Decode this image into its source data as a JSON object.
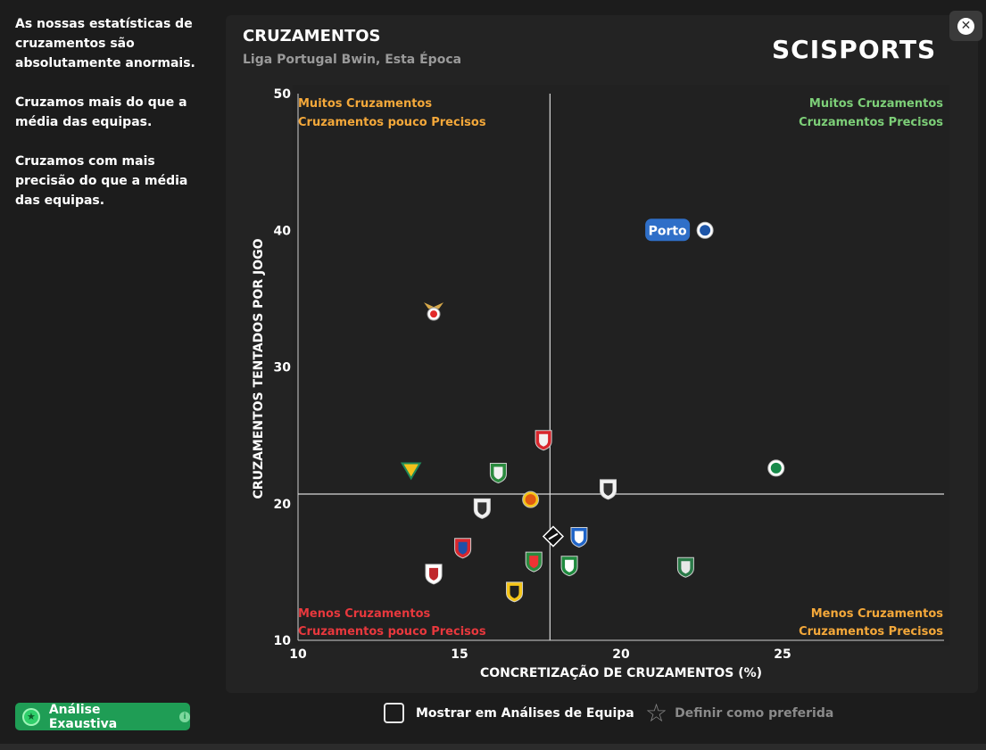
{
  "sidebar": {
    "paragraphs": [
      "As nossas estatísticas de cruzamentos são absolutamente anormais.",
      "Cruzamos mais do que a média das equipas.",
      "Cruzamos com mais precisão do que a média das equipas."
    ]
  },
  "header": {
    "title": "CRUZAMENTOS",
    "subtitle": "Liga Portugal Bwin, Esta Época",
    "brand": "SCISPORTS",
    "close_symbol": "✕"
  },
  "chart_data": {
    "type": "scatter",
    "title": "CRUZAMENTOS",
    "subtitle": "Liga Portugal Bwin, Esta Época",
    "xlabel": "CONCRETIZAÇÃO DE CRUZAMENTOS (%)",
    "ylabel": "CRUZAMENTOS TENTADOS POR JOGO",
    "xlim": [
      10,
      30
    ],
    "ylim": [
      10,
      50
    ],
    "xticks": [
      10,
      15,
      20,
      25
    ],
    "yticks": [
      10,
      20,
      30,
      40,
      50
    ],
    "mean_x": 17.8,
    "mean_y": 20.7,
    "quadrant_labels": {
      "top_left": [
        "Muitos Cruzamentos",
        "Cruzamentos pouco Precisos"
      ],
      "top_right": [
        "Muitos Cruzamentos",
        "Cruzamentos Precisos"
      ],
      "bottom_left": [
        "Menos Cruzamentos",
        "Cruzamentos pouco Precisos"
      ],
      "bottom_right": [
        "Menos Cruzamentos",
        "Cruzamentos Precisos"
      ]
    },
    "highlight": {
      "label": "Porto",
      "x": 22.6,
      "y": 40
    },
    "points": [
      {
        "x": 22.6,
        "y": 40.0,
        "colors": [
          "#1e56a8",
          "#ffffff"
        ],
        "shape": "circle"
      },
      {
        "x": 14.2,
        "y": 34.2,
        "colors": [
          "#e22a2a",
          "#ffffff"
        ],
        "shape": "eagle"
      },
      {
        "x": 17.6,
        "y": 24.7,
        "colors": [
          "#d8262c",
          "#f2f2f2"
        ],
        "shape": "shield"
      },
      {
        "x": 24.8,
        "y": 22.6,
        "colors": [
          "#178a4a",
          "#ffffff"
        ],
        "shape": "circle"
      },
      {
        "x": 13.5,
        "y": 22.5,
        "colors": [
          "#f2c21b",
          "#1f8a5a"
        ],
        "shape": "triangle"
      },
      {
        "x": 16.2,
        "y": 22.3,
        "colors": [
          "#2a8a3e",
          "#f2f2f2"
        ],
        "shape": "shield"
      },
      {
        "x": 19.6,
        "y": 21.1,
        "colors": [
          "#f2f2f2",
          "#333333"
        ],
        "shape": "shield"
      },
      {
        "x": 17.2,
        "y": 20.3,
        "colors": [
          "#e05a12",
          "#f5c518"
        ],
        "shape": "circle"
      },
      {
        "x": 15.7,
        "y": 19.7,
        "colors": [
          "#f2f2f2",
          "#333333"
        ],
        "shape": "shield"
      },
      {
        "x": 17.9,
        "y": 17.6,
        "colors": [
          "#111111",
          "#ffffff"
        ],
        "shape": "diamond"
      },
      {
        "x": 18.7,
        "y": 17.6,
        "colors": [
          "#1f64c8",
          "#ffffff"
        ],
        "shape": "shield"
      },
      {
        "x": 15.1,
        "y": 16.8,
        "colors": [
          "#d8262c",
          "#1f4fa8"
        ],
        "shape": "shield"
      },
      {
        "x": 17.3,
        "y": 15.8,
        "colors": [
          "#2a8a3e",
          "#e33"
        ],
        "shape": "shield"
      },
      {
        "x": 18.4,
        "y": 15.5,
        "colors": [
          "#1f8a3e",
          "#ffffff"
        ],
        "shape": "shield"
      },
      {
        "x": 22.0,
        "y": 15.4,
        "colors": [
          "#2a7a48",
          "#e8e8e8"
        ],
        "shape": "shield"
      },
      {
        "x": 14.2,
        "y": 14.9,
        "colors": [
          "#ffffff",
          "#c0282d"
        ],
        "shape": "shield"
      },
      {
        "x": 16.7,
        "y": 13.6,
        "colors": [
          "#f5c518",
          "#1f1f1f"
        ],
        "shape": "shield"
      }
    ]
  },
  "footer": {
    "analysis_button": "Análise Exaustiva",
    "analysis_icon": "★",
    "info_icon": "i",
    "checkbox_label": "Mostrar em Análises de Equipa",
    "favorite_icon": "☆",
    "favorite_label": "Definir como preferida"
  },
  "colors": {
    "accent_green": "#1f9d55",
    "good": "#7dcf78",
    "mixed": "#f4a83a",
    "bad": "#e8383d",
    "porto_badge": "#2f6fc8"
  }
}
